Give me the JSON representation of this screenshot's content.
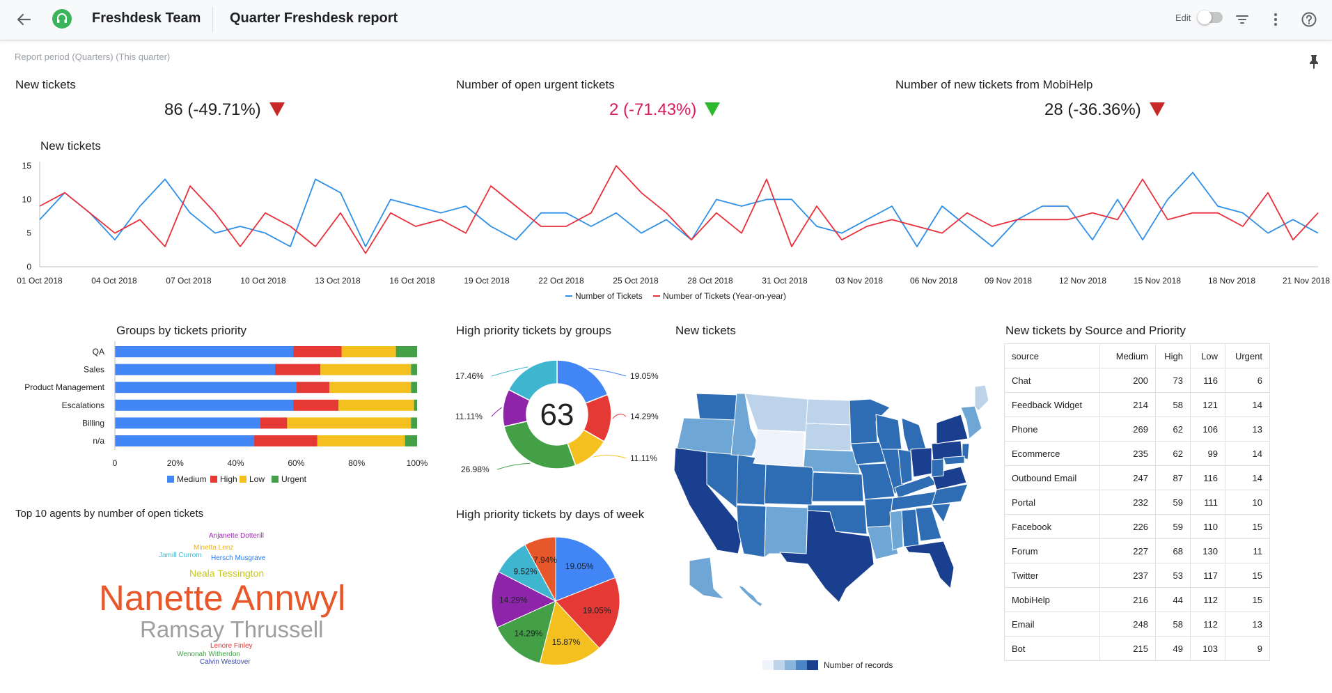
{
  "header": {
    "team_name": "Freshdesk Team",
    "report_title": "Quarter Freshdesk report",
    "edit_label": "Edit"
  },
  "report_period": "Report period (Quarters) (This quarter)",
  "kpis": [
    {
      "label": "New tickets",
      "value": "86 (-49.71%)",
      "trend": "down"
    },
    {
      "label": "Number of open urgent tickets",
      "value": "2 (-71.43%)",
      "trend": "down"
    },
    {
      "label": "Number of new tickets from MobiHelp",
      "value": "28 (-36.36%)",
      "trend": "down"
    }
  ],
  "colors": {
    "blue": "#4285f4",
    "red": "#e53935",
    "yellow": "#f4c020",
    "green": "#43a047",
    "teal": "#3fb6d0",
    "purple": "#8e24aa",
    "orange": "#e8572a"
  },
  "chart_data": [
    {
      "type": "line",
      "title": "New tickets",
      "x_tick_labels": [
        "01 Oct 2018",
        "04 Oct 2018",
        "07 Oct 2018",
        "10 Oct 2018",
        "13 Oct 2018",
        "16 Oct 2018",
        "19 Oct 2018",
        "22 Oct 2018",
        "25 Oct 2018",
        "28 Oct 2018",
        "31 Oct 2018",
        "03 Nov 2018",
        "06 Nov 2018",
        "09 Nov 2018",
        "12 Nov 2018",
        "15 Nov 2018",
        "18 Nov 2018",
        "21 Nov 2018"
      ],
      "y_ticks": [
        0,
        5,
        10,
        15
      ],
      "ylim": [
        0,
        15
      ],
      "series": [
        {
          "name": "Number of Tickets",
          "color": "#2e8fe6",
          "values": [
            7,
            11,
            8,
            4,
            9,
            13,
            8,
            5,
            6,
            5,
            3,
            13,
            11,
            3,
            10,
            9,
            8,
            9,
            6,
            4,
            8,
            8,
            6,
            8,
            5,
            7,
            4,
            10,
            9,
            10,
            10,
            6,
            5,
            7,
            9,
            3,
            9,
            6,
            3,
            7,
            9,
            9,
            4,
            10,
            4,
            10,
            14,
            9,
            8,
            5,
            7,
            5
          ]
        },
        {
          "name": "Number of Tickets (Year-on-year)",
          "color": "#e8303b",
          "values": [
            9,
            11,
            8,
            5,
            7,
            3,
            12,
            8,
            3,
            8,
            6,
            3,
            8,
            2,
            8,
            6,
            7,
            5,
            12,
            9,
            6,
            6,
            8,
            15,
            11,
            8,
            4,
            8,
            5,
            13,
            3,
            9,
            4,
            6,
            7,
            6,
            5,
            8,
            6,
            7,
            7,
            7,
            8,
            7,
            13,
            7,
            8,
            8,
            6,
            11,
            4,
            8
          ]
        }
      ]
    },
    {
      "type": "bar",
      "orientation": "horizontal-stacked-percent",
      "title": "Groups by tickets priority",
      "categories": [
        "QA",
        "Sales",
        "Product Management",
        "Escalations",
        "Billing",
        "n/a"
      ],
      "x_ticks": [
        "0",
        "20%",
        "40%",
        "60%",
        "80%",
        "100%"
      ],
      "series": [
        {
          "name": "Medium",
          "color": "#4285f4",
          "values": [
            59,
            53,
            60,
            59,
            48,
            46
          ]
        },
        {
          "name": "High",
          "color": "#e53935",
          "values": [
            16,
            15,
            11,
            15,
            9,
            21
          ]
        },
        {
          "name": "Low",
          "color": "#f4c020",
          "values": [
            18,
            30,
            27,
            25,
            41,
            29
          ]
        },
        {
          "name": "Urgent",
          "color": "#43a047",
          "values": [
            7,
            2,
            2,
            1,
            2,
            4
          ]
        }
      ]
    },
    {
      "type": "pie",
      "variant": "donut",
      "title": "High priority tickets by groups",
      "center_label": "63",
      "slices": [
        {
          "label": "19.05%",
          "value": 19.05,
          "color": "#4285f4"
        },
        {
          "label": "14.29%",
          "value": 14.29,
          "color": "#e53935"
        },
        {
          "label": "11.11%",
          "value": 11.11,
          "color": "#f4c020"
        },
        {
          "label": "26.98%",
          "value": 26.98,
          "color": "#43a047"
        },
        {
          "label": "11.11%",
          "value": 11.11,
          "color": "#8e24aa"
        },
        {
          "label": "17.46%",
          "value": 17.46,
          "color": "#3fb6d0"
        }
      ]
    },
    {
      "type": "pie",
      "title": "High priority tickets by days of week",
      "slices": [
        {
          "label": "19.05%",
          "value": 19.05,
          "color": "#4285f4"
        },
        {
          "label": "19.05%",
          "value": 19.05,
          "color": "#e53935"
        },
        {
          "label": "15.87%",
          "value": 15.87,
          "color": "#f4c020"
        },
        {
          "label": "14.29%",
          "value": 14.29,
          "color": "#43a047"
        },
        {
          "label": "14.29%",
          "value": 14.29,
          "color": "#8e24aa"
        },
        {
          "label": "9.52%",
          "value": 9.52,
          "color": "#3fb6d0"
        },
        {
          "label": "7.94%",
          "value": 7.94,
          "color": "#e8572a"
        }
      ]
    }
  ],
  "map": {
    "title": "New tickets",
    "legend_label": "Number of records",
    "scale_colors": [
      "#eef3fc",
      "#bcd3ea",
      "#89b4dc",
      "#4a86c6",
      "#1b3f8f"
    ]
  },
  "word_cloud": {
    "title": "Top 10 agents by number of open tickets",
    "words": [
      {
        "text": "Anjanette Dotterill",
        "color": "#9c27b0"
      },
      {
        "text": "Minetta Lenz",
        "color": "#f4b400"
      },
      {
        "text": "Jamill Currom",
        "color": "#3fb6d0"
      },
      {
        "text": "Hersch Musgrave",
        "color": "#2e7be6"
      },
      {
        "text": "Neala Tessington",
        "color": "#c8c81e"
      },
      {
        "text": "Nanette Annwyl",
        "color": "#e8572a"
      },
      {
        "text": "Ramsay Thrussell",
        "color": "#9e9e9e"
      },
      {
        "text": "Lenore Finley",
        "color": "#e53935"
      },
      {
        "text": "Wenonah Witherdon",
        "color": "#43a047"
      },
      {
        "text": "Calvin Westover",
        "color": "#3949ab"
      }
    ]
  },
  "source_table": {
    "title": "New tickets by Source and Priority",
    "columns": [
      "source",
      "Medium",
      "High",
      "Low",
      "Urgent"
    ],
    "rows": [
      [
        "Chat",
        "200",
        "73",
        "116",
        "6"
      ],
      [
        "Feedback Widget",
        "214",
        "58",
        "121",
        "14"
      ],
      [
        "Phone",
        "269",
        "62",
        "106",
        "13"
      ],
      [
        "Ecommerce",
        "235",
        "62",
        "99",
        "14"
      ],
      [
        "Outbound Email",
        "247",
        "87",
        "116",
        "14"
      ],
      [
        "Portal",
        "232",
        "59",
        "111",
        "10"
      ],
      [
        "Facebook",
        "226",
        "59",
        "110",
        "15"
      ],
      [
        "Forum",
        "227",
        "68",
        "130",
        "11"
      ],
      [
        "Twitter",
        "237",
        "53",
        "117",
        "15"
      ],
      [
        "MobiHelp",
        "216",
        "44",
        "112",
        "15"
      ],
      [
        "Email",
        "248",
        "58",
        "112",
        "13"
      ],
      [
        "Bot",
        "215",
        "49",
        "103",
        "9"
      ]
    ]
  }
}
